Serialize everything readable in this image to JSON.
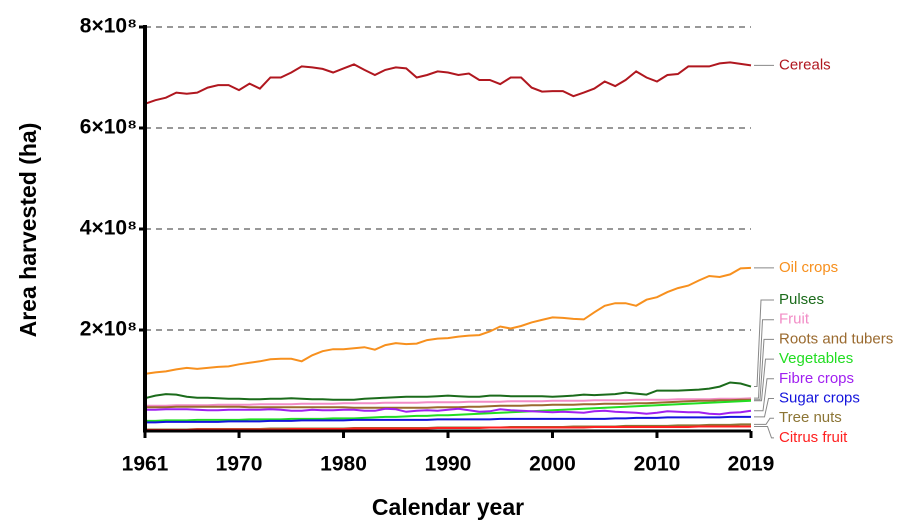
{
  "chart_data": {
    "type": "line",
    "x_label": "Calendar year",
    "y_label": "Area harvested (ha)",
    "x": [
      1961,
      1962,
      1963,
      1964,
      1965,
      1966,
      1967,
      1968,
      1969,
      1970,
      1971,
      1972,
      1973,
      1974,
      1975,
      1976,
      1977,
      1978,
      1979,
      1980,
      1981,
      1982,
      1983,
      1984,
      1985,
      1986,
      1987,
      1988,
      1989,
      1990,
      1991,
      1992,
      1993,
      1994,
      1995,
      1996,
      1997,
      1998,
      1999,
      2000,
      2001,
      2002,
      2003,
      2004,
      2005,
      2006,
      2007,
      2008,
      2009,
      2010,
      2011,
      2012,
      2013,
      2014,
      2015,
      2016,
      2017,
      2018,
      2019
    ],
    "xlim": [
      1961,
      2019
    ],
    "xticks": [
      1961,
      1970,
      1980,
      1990,
      2000,
      2010,
      2019
    ],
    "ylim": [
      0,
      800000000.0
    ],
    "yticks": [
      {
        "value": 200000000.0,
        "label": "2×10⁸"
      },
      {
        "value": 400000000.0,
        "label": "4×10⁸"
      },
      {
        "value": 600000000.0,
        "label": "6×10⁸"
      },
      {
        "value": 800000000.0,
        "label": "8×10⁸"
      }
    ],
    "grid": true,
    "series": [
      {
        "name": "Cereals",
        "color": "#b0171f",
        "values": [
          648000000.0,
          655000000.0,
          660000000.0,
          670000000.0,
          668000000.0,
          670000000.0,
          680000000.0,
          685000000.0,
          685000000.0,
          675000000.0,
          688000000.0,
          678000000.0,
          700000000.0,
          700000000.0,
          710000000.0,
          722000000.0,
          720000000.0,
          717000000.0,
          710000000.0,
          718000000.0,
          726000000.0,
          715000000.0,
          705000000.0,
          715000000.0,
          720000000.0,
          718000000.0,
          700000000.0,
          705000000.0,
          712000000.0,
          710000000.0,
          705000000.0,
          708000000.0,
          695000000.0,
          695000000.0,
          687000000.0,
          700000000.0,
          700000000.0,
          680000000.0,
          672000000.0,
          673000000.0,
          673000000.0,
          663000000.0,
          670000000.0,
          678000000.0,
          692000000.0,
          683000000.0,
          695000000.0,
          712000000.0,
          700000000.0,
          692000000.0,
          705000000.0,
          707000000.0,
          722000000.0,
          722000000.0,
          722000000.0,
          728000000.0,
          730000000.0,
          727000000.0,
          724000000.0
        ]
      },
      {
        "name": "Oil crops",
        "color": "#f7901e",
        "values": [
          113000000.0,
          116000000.0,
          118000000.0,
          122000000.0,
          125000000.0,
          123000000.0,
          125000000.0,
          127000000.0,
          128000000.0,
          132000000.0,
          135000000.0,
          138000000.0,
          142000000.0,
          143000000.0,
          143000000.0,
          138000000.0,
          150000000.0,
          158000000.0,
          162000000.0,
          162000000.0,
          164000000.0,
          166000000.0,
          161000000.0,
          170000000.0,
          174000000.0,
          172000000.0,
          173000000.0,
          180000000.0,
          183000000.0,
          184000000.0,
          187000000.0,
          189000000.0,
          190000000.0,
          197000000.0,
          207000000.0,
          203000000.0,
          208000000.0,
          215000000.0,
          220000000.0,
          225000000.0,
          224000000.0,
          222000000.0,
          221000000.0,
          235000000.0,
          248000000.0,
          253000000.0,
          253000000.0,
          248000000.0,
          260000000.0,
          265000000.0,
          275000000.0,
          283000000.0,
          288000000.0,
          298000000.0,
          307000000.0,
          305000000.0,
          310000000.0,
          322000000.0,
          323000000.0
        ]
      },
      {
        "name": "Pulses",
        "color": "#1b6b1b",
        "values": [
          65000000.0,
          70000000.0,
          73000000.0,
          72000000.0,
          68000000.0,
          66000000.0,
          66000000.0,
          65000000.0,
          64000000.0,
          64000000.0,
          63000000.0,
          63000000.0,
          64000000.0,
          64000000.0,
          65000000.0,
          64000000.0,
          63000000.0,
          63000000.0,
          62000000.0,
          62000000.0,
          62000000.0,
          64000000.0,
          65000000.0,
          66000000.0,
          67000000.0,
          68000000.0,
          68000000.0,
          68000000.0,
          69000000.0,
          70000000.0,
          69000000.0,
          68000000.0,
          68000000.0,
          70000000.0,
          70000000.0,
          69000000.0,
          69000000.0,
          69000000.0,
          69000000.0,
          68000000.0,
          69000000.0,
          70000000.0,
          72000000.0,
          71000000.0,
          72000000.0,
          73000000.0,
          76000000.0,
          74000000.0,
          72000000.0,
          80000000.0,
          80000000.0,
          80000000.0,
          81000000.0,
          82000000.0,
          84000000.0,
          88000000.0,
          96000000.0,
          94000000.0,
          88000000.0
        ]
      },
      {
        "name": "Fruit",
        "color": "#f28cc6",
        "values": [
          50000000.0,
          50000000.0,
          50000000.0,
          51000000.0,
          51000000.0,
          51000000.0,
          51000000.0,
          52000000.0,
          52000000.0,
          52000000.0,
          52000000.0,
          53000000.0,
          53000000.0,
          53000000.0,
          53000000.0,
          54000000.0,
          54000000.0,
          54000000.0,
          54000000.0,
          55000000.0,
          55000000.0,
          55000000.0,
          55000000.0,
          56000000.0,
          56000000.0,
          56000000.0,
          56000000.0,
          57000000.0,
          57000000.0,
          57000000.0,
          57000000.0,
          58000000.0,
          58000000.0,
          58000000.0,
          58000000.0,
          59000000.0,
          59000000.0,
          59000000.0,
          59000000.0,
          60000000.0,
          60000000.0,
          60000000.0,
          60000000.0,
          61000000.0,
          61000000.0,
          61000000.0,
          61000000.0,
          62000000.0,
          62000000.0,
          62000000.0,
          62000000.0,
          63000000.0,
          63000000.0,
          63000000.0,
          63000000.0,
          64000000.0,
          64000000.0,
          64000000.0,
          65000000.0
        ]
      },
      {
        "name": "Roots and tubers",
        "color": "#9a6a2f",
        "values": [
          47000000.0,
          47000000.0,
          47000000.0,
          48000000.0,
          48000000.0,
          48000000.0,
          48000000.0,
          48000000.0,
          48000000.0,
          48000000.0,
          47000000.0,
          47000000.0,
          47000000.0,
          47000000.0,
          47000000.0,
          47000000.0,
          47000000.0,
          47000000.0,
          47000000.0,
          47000000.0,
          46000000.0,
          46000000.0,
          46000000.0,
          46000000.0,
          46000000.0,
          46000000.0,
          46000000.0,
          46000000.0,
          47000000.0,
          47000000.0,
          47000000.0,
          48000000.0,
          48000000.0,
          49000000.0,
          50000000.0,
          50000000.0,
          50000000.0,
          51000000.0,
          51000000.0,
          52000000.0,
          52000000.0,
          52000000.0,
          53000000.0,
          53000000.0,
          54000000.0,
          54000000.0,
          54000000.0,
          55000000.0,
          55000000.0,
          56000000.0,
          57000000.0,
          58000000.0,
          59000000.0,
          60000000.0,
          60000000.0,
          61000000.0,
          61000000.0,
          62000000.0,
          62000000.0
        ]
      },
      {
        "name": "Vegetables",
        "color": "#22dd22",
        "values": [
          20000000.0,
          20000000.0,
          21000000.0,
          21000000.0,
          21000000.0,
          22000000.0,
          22000000.0,
          22000000.0,
          22000000.0,
          22000000.0,
          23000000.0,
          23000000.0,
          23000000.0,
          23000000.0,
          24000000.0,
          24000000.0,
          24000000.0,
          24000000.0,
          25000000.0,
          25000000.0,
          25000000.0,
          26000000.0,
          27000000.0,
          28000000.0,
          28000000.0,
          29000000.0,
          30000000.0,
          30000000.0,
          31000000.0,
          31000000.0,
          32000000.0,
          33000000.0,
          34000000.0,
          35000000.0,
          36000000.0,
          37000000.0,
          38000000.0,
          39000000.0,
          40000000.0,
          41000000.0,
          42000000.0,
          43000000.0,
          44000000.0,
          45000000.0,
          46000000.0,
          47000000.0,
          48000000.0,
          49000000.0,
          50000000.0,
          51000000.0,
          52000000.0,
          53000000.0,
          54000000.0,
          55000000.0,
          56000000.0,
          57000000.0,
          58000000.0,
          59000000.0,
          60000000.0
        ]
      },
      {
        "name": "Fibre crops",
        "color": "#a020f0",
        "values": [
          42000000.0,
          42000000.0,
          43000000.0,
          43000000.0,
          43000000.0,
          42000000.0,
          41000000.0,
          41000000.0,
          42000000.0,
          42000000.0,
          42000000.0,
          42000000.0,
          43000000.0,
          42000000.0,
          40000000.0,
          40000000.0,
          42000000.0,
          41000000.0,
          41000000.0,
          42000000.0,
          42000000.0,
          40000000.0,
          40000000.0,
          44000000.0,
          43000000.0,
          38000000.0,
          40000000.0,
          41000000.0,
          40000000.0,
          42000000.0,
          44000000.0,
          41000000.0,
          38000000.0,
          39000000.0,
          43000000.0,
          41000000.0,
          40000000.0,
          39000000.0,
          38000000.0,
          37000000.0,
          38000000.0,
          37000000.0,
          36000000.0,
          39000000.0,
          40000000.0,
          38000000.0,
          37000000.0,
          36000000.0,
          34000000.0,
          36000000.0,
          39000000.0,
          38000000.0,
          37000000.0,
          37000000.0,
          34000000.0,
          33000000.0,
          36000000.0,
          37000000.0,
          40000000.0
        ]
      },
      {
        "name": "Sugar crops",
        "color": "#1414dc",
        "values": [
          17000000.0,
          17000000.0,
          18000000.0,
          18000000.0,
          18000000.0,
          18000000.0,
          18000000.0,
          18000000.0,
          19000000.0,
          19000000.0,
          19000000.0,
          19000000.0,
          20000000.0,
          20000000.0,
          20000000.0,
          21000000.0,
          21000000.0,
          21000000.0,
          21000000.0,
          21000000.0,
          22000000.0,
          22000000.0,
          22000000.0,
          22000000.0,
          22000000.0,
          22000000.0,
          22000000.0,
          22000000.0,
          23000000.0,
          23000000.0,
          23000000.0,
          23000000.0,
          23000000.0,
          23000000.0,
          24000000.0,
          24000000.0,
          24000000.0,
          24000000.0,
          24000000.0,
          24000000.0,
          24000000.0,
          24000000.0,
          24000000.0,
          24000000.0,
          24000000.0,
          25000000.0,
          25000000.0,
          26000000.0,
          26000000.0,
          26000000.0,
          27000000.0,
          27000000.0,
          27000000.0,
          27000000.0,
          27000000.0,
          27000000.0,
          28000000.0,
          28000000.0,
          28000000.0
        ]
      },
      {
        "name": "Tree nuts",
        "color": "#8c7535",
        "values": [
          3000000.0,
          3000000.0,
          3000000.0,
          3000000.0,
          3000000.0,
          4000000.0,
          4000000.0,
          4000000.0,
          4000000.0,
          4000000.0,
          4000000.0,
          4000000.0,
          5000000.0,
          5000000.0,
          5000000.0,
          5000000.0,
          5000000.0,
          5000000.0,
          5000000.0,
          5000000.0,
          6000000.0,
          6000000.0,
          6000000.0,
          6000000.0,
          6000000.0,
          6000000.0,
          6000000.0,
          6000000.0,
          7000000.0,
          7000000.0,
          7000000.0,
          7000000.0,
          7000000.0,
          7000000.0,
          7000000.0,
          8000000.0,
          8000000.0,
          8000000.0,
          8000000.0,
          8000000.0,
          8000000.0,
          9000000.0,
          9000000.0,
          9000000.0,
          9000000.0,
          9000000.0,
          10000000.0,
          10000000.0,
          10000000.0,
          10000000.0,
          10000000.0,
          11000000.0,
          11000000.0,
          11000000.0,
          12000000.0,
          12000000.0,
          12000000.0,
          13000000.0,
          13000000.0
        ]
      },
      {
        "name": "Citrus fruit",
        "color": "#ff2020",
        "values": [
          2000000.0,
          2000000.0,
          2000000.0,
          2000000.0,
          2000000.0,
          3000000.0,
          3000000.0,
          3000000.0,
          3000000.0,
          3000000.0,
          3000000.0,
          3000000.0,
          3000000.0,
          3000000.0,
          4000000.0,
          4000000.0,
          4000000.0,
          4000000.0,
          4000000.0,
          4000000.0,
          5000000.0,
          5000000.0,
          5000000.0,
          5000000.0,
          5000000.0,
          5000000.0,
          5000000.0,
          5000000.0,
          6000000.0,
          6000000.0,
          6000000.0,
          6000000.0,
          6000000.0,
          7000000.0,
          7000000.0,
          7000000.0,
          7000000.0,
          7000000.0,
          7000000.0,
          7000000.0,
          7000000.0,
          7000000.0,
          7000000.0,
          8000000.0,
          8000000.0,
          8000000.0,
          8000000.0,
          8000000.0,
          8000000.0,
          8000000.0,
          8000000.0,
          8000000.0,
          8000000.0,
          9000000.0,
          9000000.0,
          9000000.0,
          9000000.0,
          9000000.0,
          9000000.0
        ]
      }
    ]
  }
}
